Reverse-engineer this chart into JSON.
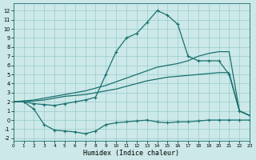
{
  "xlabel": "Humidex (Indice chaleur)",
  "bg_color": "#cce8e8",
  "line_color": "#1a7070",
  "grid_color": "#99cccc",
  "ylim": [
    -2.3,
    12.8
  ],
  "xlim": [
    0,
    23
  ],
  "yticks": [
    -2,
    -1,
    0,
    1,
    2,
    3,
    4,
    5,
    6,
    7,
    8,
    9,
    10,
    11,
    12
  ],
  "xticks": [
    0,
    1,
    2,
    3,
    4,
    5,
    6,
    7,
    8,
    9,
    10,
    11,
    12,
    13,
    14,
    15,
    16,
    17,
    18,
    19,
    20,
    21,
    22,
    23
  ],
  "curve_top_x": [
    0,
    1,
    2,
    3,
    4,
    5,
    6,
    7,
    8,
    9,
    10,
    11,
    12,
    13,
    14,
    15,
    16,
    17,
    18,
    19,
    20,
    21,
    22,
    23
  ],
  "curve_top_y": [
    2.0,
    2.0,
    1.8,
    1.7,
    1.6,
    1.8,
    2.0,
    2.2,
    2.5,
    5.0,
    7.5,
    9.0,
    9.5,
    10.7,
    12.0,
    11.5,
    10.5,
    7.0,
    6.5,
    6.5,
    6.5,
    5.0,
    1.0,
    0.5
  ],
  "line_upper_x": [
    0,
    1,
    2,
    3,
    4,
    5,
    6,
    7,
    8,
    9,
    10,
    11,
    12,
    13,
    14,
    15,
    16,
    17,
    18,
    19,
    20,
    21,
    22,
    23
  ],
  "line_upper_y": [
    2.0,
    2.1,
    2.2,
    2.4,
    2.6,
    2.8,
    3.0,
    3.2,
    3.5,
    3.8,
    4.2,
    4.6,
    5.0,
    5.4,
    5.8,
    6.0,
    6.2,
    6.5,
    7.0,
    7.3,
    7.5,
    7.5,
    1.0,
    0.5
  ],
  "line_lower_x": [
    0,
    1,
    2,
    3,
    4,
    5,
    6,
    7,
    8,
    9,
    10,
    11,
    12,
    13,
    14,
    15,
    16,
    17,
    18,
    19,
    20,
    21,
    22,
    23
  ],
  "line_lower_y": [
    2.0,
    2.0,
    2.1,
    2.2,
    2.4,
    2.6,
    2.7,
    2.8,
    3.0,
    3.2,
    3.4,
    3.7,
    4.0,
    4.3,
    4.5,
    4.7,
    4.8,
    4.9,
    5.0,
    5.1,
    5.2,
    5.2,
    1.0,
    0.5
  ],
  "curve_bot_x": [
    0,
    1,
    2,
    3,
    4,
    5,
    6,
    7,
    8,
    9,
    10,
    11,
    12,
    13,
    14,
    15,
    16,
    17,
    18,
    19,
    20,
    21,
    22,
    23
  ],
  "curve_bot_y": [
    2.0,
    2.0,
    1.2,
    -0.5,
    -1.1,
    -1.2,
    -1.3,
    -1.5,
    -1.2,
    -0.5,
    -0.3,
    -0.2,
    -0.1,
    0.0,
    -0.2,
    -0.3,
    -0.2,
    -0.2,
    -0.1,
    0.0,
    0.0,
    0.0,
    0.0,
    0.0
  ]
}
